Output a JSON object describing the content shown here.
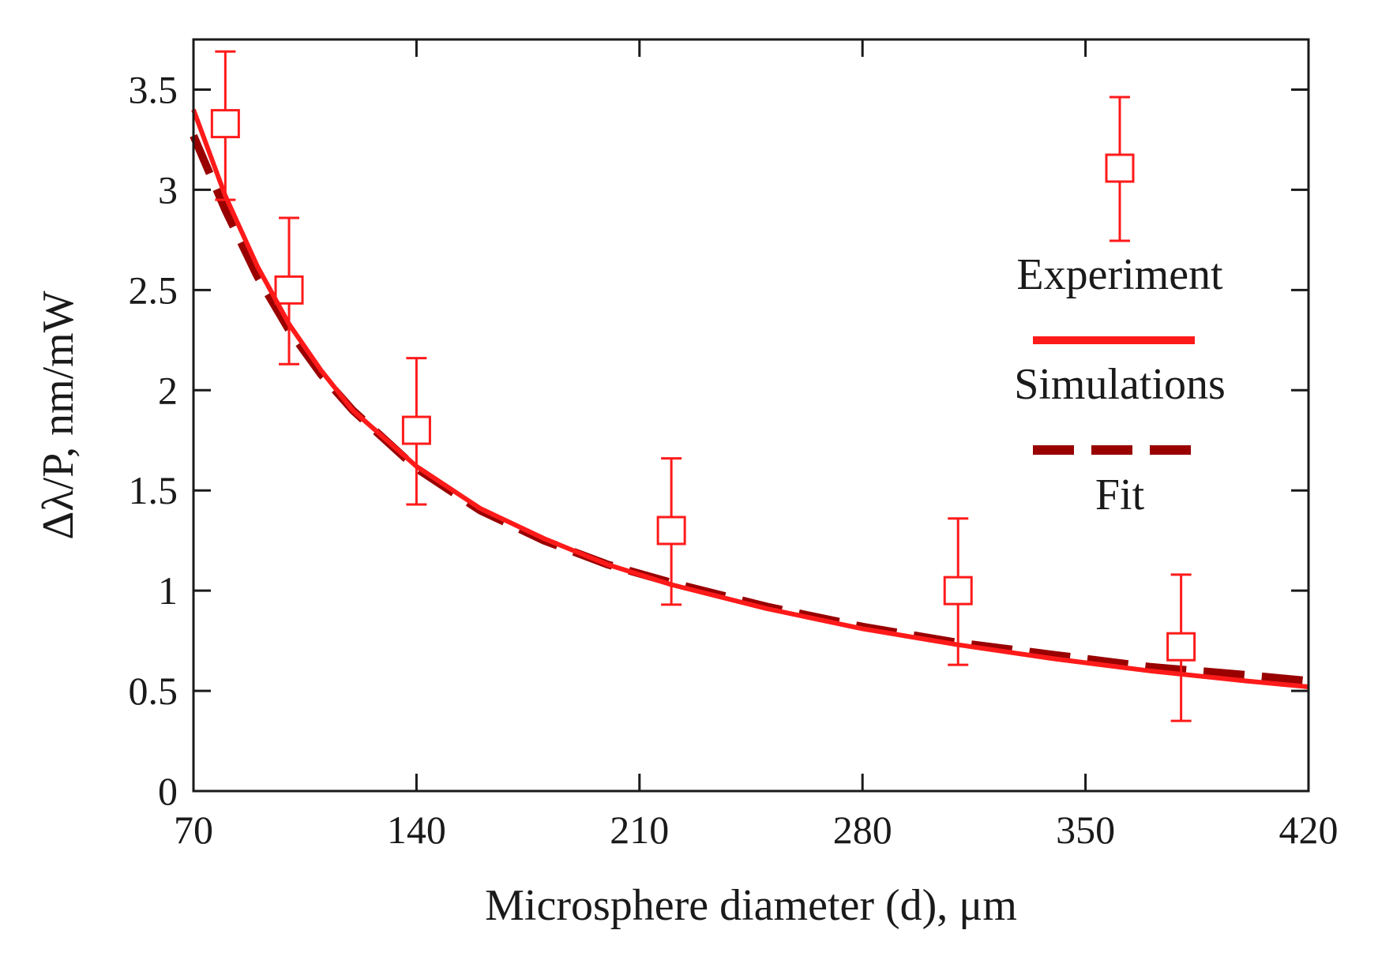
{
  "chart_data": {
    "type": "scatter",
    "xlabel": "Microsphere diameter (d), μm",
    "ylabel": "Δλ/P, nm/mW",
    "xlim": [
      70,
      420
    ],
    "ylim": [
      0,
      3.75
    ],
    "xticks": [
      70,
      140,
      210,
      280,
      350,
      420
    ],
    "yticks": [
      0,
      0.5,
      1,
      1.5,
      2,
      2.5,
      3,
      3.5
    ],
    "xtick_labels": [
      "70",
      "140",
      "210",
      "280",
      "350",
      "420"
    ],
    "ytick_labels": [
      "0",
      "0.5",
      "1",
      "1.5",
      "2",
      "2.5",
      "3",
      "3.5"
    ],
    "series": [
      {
        "name": "Experiment",
        "kind": "points-with-errorbars",
        "marker": "open-square",
        "color": "#ff1a1a",
        "x": [
          80,
          100,
          140,
          220,
          310,
          380
        ],
        "y": [
          3.33,
          2.5,
          1.8,
          1.3,
          1.0,
          0.72
        ],
        "yerr_low": [
          2.95,
          2.13,
          1.43,
          0.93,
          0.63,
          0.35
        ],
        "yerr_high": [
          3.69,
          2.86,
          2.16,
          1.66,
          1.36,
          1.08
        ]
      },
      {
        "name": "Simulations",
        "kind": "line",
        "style": "solid",
        "color": "#ff1a1a",
        "x": [
          70,
          80,
          90,
          100,
          110,
          120,
          140,
          160,
          180,
          200,
          220,
          250,
          280,
          310,
          340,
          370,
          400,
          420
        ],
        "y": [
          3.4,
          2.97,
          2.62,
          2.33,
          2.1,
          1.9,
          1.62,
          1.41,
          1.26,
          1.13,
          1.03,
          0.91,
          0.81,
          0.73,
          0.66,
          0.6,
          0.55,
          0.52
        ]
      },
      {
        "name": "Fit",
        "kind": "line",
        "style": "dashed",
        "color": "#990000",
        "x": [
          70,
          80,
          90,
          100,
          110,
          120,
          140,
          160,
          180,
          200,
          220,
          250,
          280,
          310,
          340,
          370,
          400,
          420
        ],
        "y": [
          3.27,
          2.9,
          2.57,
          2.3,
          2.08,
          1.9,
          1.61,
          1.4,
          1.25,
          1.13,
          1.04,
          0.92,
          0.82,
          0.74,
          0.68,
          0.62,
          0.58,
          0.55
        ]
      }
    ],
    "legend": {
      "placement": "right",
      "entries": [
        "Experiment",
        "Simulations",
        "Fit"
      ]
    }
  }
}
